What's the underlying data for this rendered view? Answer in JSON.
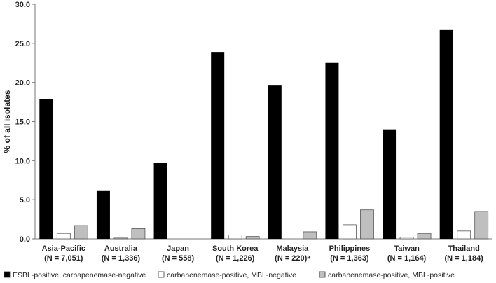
{
  "chart_data": {
    "type": "bar",
    "ylabel": "% of all isolates",
    "ylim": [
      0,
      30
    ],
    "yticks": [
      "0.0",
      "5.0",
      "10.0",
      "15.0",
      "20.0",
      "25.0",
      "30.0"
    ],
    "categories": [
      {
        "name": "Asia-Pacific",
        "n": "(N = 7,051)"
      },
      {
        "name": "Australia",
        "n": "(N = 1,336)"
      },
      {
        "name": "Japan",
        "n": "(N = 558)"
      },
      {
        "name": "South Korea",
        "n": "(N = 1,226)"
      },
      {
        "name": "Malaysia",
        "n": "(N = 220)ᵃ"
      },
      {
        "name": "Philippines",
        "n": "(N = 1,363)"
      },
      {
        "name": "Taiwan",
        "n": "(N = 1,164)"
      },
      {
        "name": "Thailand",
        "n": "(N = 1,184)"
      }
    ],
    "series": [
      {
        "name": "ESBL-positive, carbapenemase-negative",
        "color": "#000000",
        "values": [
          17.9,
          6.2,
          9.7,
          23.9,
          19.6,
          22.5,
          14.0,
          26.7
        ]
      },
      {
        "name": "carbapenemase-positive, MBL-negative",
        "color": "#ffffff",
        "values": [
          0.7,
          0.1,
          0.0,
          0.5,
          0.0,
          1.8,
          0.2,
          1.0
        ]
      },
      {
        "name": "carbapenemase-positive, MBL-positive",
        "color": "#bfbfbf",
        "values": [
          1.7,
          1.3,
          0.0,
          0.3,
          0.9,
          3.7,
          0.7,
          3.5
        ]
      }
    ],
    "grid": false,
    "legend_position": "bottom"
  }
}
